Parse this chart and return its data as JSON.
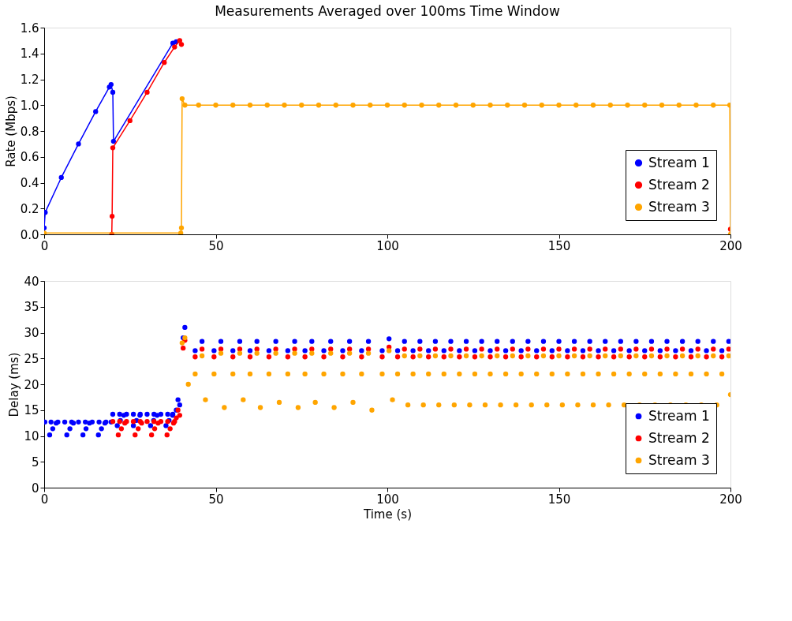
{
  "chart_data": [
    {
      "type": "line",
      "title": "Measurements Averaged over 100ms Time Window",
      "ylabel": "Rate (Mbps)",
      "xlim": [
        0,
        200
      ],
      "xticks": [
        0,
        50,
        100,
        150,
        200
      ],
      "ylim": [
        0,
        1.6
      ],
      "yticks": [
        {
          "value": 0,
          "label": "0.0"
        },
        {
          "value": 0.2,
          "label": "0.2"
        },
        {
          "value": 0.4,
          "label": "0.4"
        },
        {
          "value": 0.6,
          "label": "0.6"
        },
        {
          "value": 0.8,
          "label": "0.8"
        },
        {
          "value": 1.0,
          "label": "1.0"
        },
        {
          "value": 1.2,
          "label": "1.2"
        },
        {
          "value": 1.4,
          "label": "1.4"
        },
        {
          "value": 1.6,
          "label": "1.6"
        }
      ],
      "grid": false,
      "legend": "bottom right",
      "marker": "circle",
      "line_style": "solid",
      "series": [
        {
          "name": "Stream 1",
          "color": "#0000ff",
          "x": [
            0,
            0.3,
            5,
            10,
            15,
            19,
            19.5,
            20,
            20.2,
            37.5,
            38.5
          ],
          "values": [
            0.05,
            0.17,
            0.44,
            0.7,
            0.95,
            1.14,
            1.16,
            1.1,
            0.72,
            1.48,
            1.49
          ]
        },
        {
          "name": "Stream 2",
          "color": "#ff0000",
          "x": [
            19.7,
            19.8,
            20,
            25,
            30,
            35,
            38,
            39.5,
            40,
            40.3,
            199.8,
            200
          ],
          "values": [
            0,
            0.14,
            0.67,
            0.88,
            1.1,
            1.33,
            1.45,
            1.5,
            1.47,
            null,
            null,
            0.04
          ]
        },
        {
          "name": "Stream 3",
          "color": "#ffa500",
          "x": [
            0,
            39.8,
            40,
            40.2,
            41,
            45,
            50,
            55,
            60,
            65,
            70,
            75,
            80,
            85,
            90,
            95,
            100,
            105,
            110,
            115,
            120,
            125,
            130,
            135,
            140,
            145,
            150,
            155,
            160,
            165,
            170,
            175,
            180,
            185,
            190,
            195,
            199.8,
            200
          ],
          "values": [
            0.01,
            0.01,
            0.05,
            1.05,
            1.0,
            1.0,
            1.0,
            1.0,
            1.0,
            1.0,
            1.0,
            1.0,
            1.0,
            1.0,
            1.0,
            1.0,
            1.0,
            1.0,
            1.0,
            1.0,
            1.0,
            1.0,
            1.0,
            1.0,
            1.0,
            1.0,
            1.0,
            1.0,
            1.0,
            1.0,
            1.0,
            1.0,
            1.0,
            1.0,
            1.0,
            1.0,
            1.0,
            0.0
          ]
        }
      ]
    },
    {
      "type": "scatter",
      "xlabel": "Time (s)",
      "ylabel": "Delay (ms)",
      "xlim": [
        0,
        200
      ],
      "xticks": [
        0,
        50,
        100,
        150,
        200
      ],
      "ylim": [
        0,
        40
      ],
      "yticks": [
        0,
        5,
        10,
        15,
        20,
        25,
        30,
        35,
        40
      ],
      "grid": false,
      "legend": "bottom right",
      "marker": "circle",
      "series": [
        {
          "name": "Stream 1",
          "color": "#0000ff",
          "x": [
            0.2,
            2,
            4,
            6,
            8,
            10,
            12,
            14,
            16,
            18,
            19.5,
            1.6,
            2.5,
            3.5,
            6.6,
            7.5,
            8.5,
            11.3,
            12.2,
            13.2,
            15.8,
            16.7,
            17.7,
            20,
            22,
            24,
            26,
            28,
            30,
            32,
            34,
            36,
            37.5,
            21.3,
            22.2,
            23.2,
            26,
            26.9,
            27.9,
            31,
            31.9,
            32.9,
            35.5,
            36.4,
            37.4,
            38.5,
            39,
            39.5,
            40.5,
            41,
            44,
            46,
            49.5,
            51.5,
            55,
            57,
            60,
            62,
            65.5,
            67.5,
            71,
            73,
            76,
            78,
            81.5,
            83.5,
            87,
            89,
            92.5,
            94.5,
            98.5,
            100.5,
            103,
            105,
            107.5,
            109.5,
            112,
            114,
            116.5,
            118.5,
            121,
            123,
            125.5,
            127.5,
            130,
            132,
            134.5,
            136.5,
            139,
            141,
            143.5,
            145.5,
            148,
            150,
            152.5,
            154.5,
            157,
            159,
            161.5,
            163.5,
            166,
            168,
            170.5,
            172.5,
            175,
            177,
            179.5,
            181.5,
            184,
            186,
            188.5,
            190.5,
            193,
            195,
            197.5,
            199.5
          ],
          "values": [
            12.7,
            12.7,
            12.7,
            12.7,
            12.7,
            12.7,
            12.7,
            12.7,
            12.7,
            12.7,
            12.7,
            10.2,
            11.4,
            12.5,
            10.2,
            11.4,
            12.5,
            10.2,
            11.4,
            12.5,
            10.2,
            11.4,
            12.5,
            14.2,
            14.2,
            14.2,
            14.2,
            14.2,
            14.2,
            14.2,
            14.2,
            14.2,
            14.2,
            12,
            13,
            14,
            12,
            13,
            14,
            12,
            13,
            14,
            12,
            13,
            14,
            15,
            17,
            16,
            29,
            31,
            26.5,
            28.3,
            26.5,
            28.3,
            26.5,
            28.3,
            26.5,
            28.3,
            26.5,
            28.3,
            26.5,
            28.3,
            26.5,
            28.3,
            26.5,
            28.3,
            26.5,
            28.3,
            26.5,
            28.3,
            26.5,
            28.8,
            26.5,
            28.3,
            26.5,
            28.3,
            26.5,
            28.3,
            26.5,
            28.3,
            26.5,
            28.3,
            26.5,
            28.3,
            26.5,
            28.3,
            26.5,
            28.3,
            26.5,
            28.3,
            26.5,
            28.3,
            26.5,
            28.3,
            26.5,
            28.3,
            26.5,
            28.3,
            26.5,
            28.3,
            26.5,
            28.3,
            26.5,
            28.3,
            26.5,
            28.3,
            26.5,
            28.3,
            26.5,
            28.3,
            26.5,
            28.3,
            26.5,
            28.3,
            26.5,
            28.3
          ]
        },
        {
          "name": "Stream 2",
          "color": "#ff0000",
          "x": [
            20,
            22,
            24,
            26,
            28,
            30,
            32,
            34,
            36,
            38,
            21.6,
            22.5,
            23.5,
            26.5,
            27.4,
            28.4,
            31.3,
            32.2,
            33.2,
            35.8,
            36.7,
            37.7,
            38.5,
            39,
            39.5,
            40.5,
            41,
            44,
            46,
            49.5,
            51.5,
            55,
            57,
            60,
            62,
            65.5,
            67.5,
            71,
            73,
            76,
            78,
            81.5,
            83.5,
            87,
            89,
            92.5,
            94.5,
            98.5,
            100.5,
            103,
            105,
            107.5,
            109.5,
            112,
            114,
            116.5,
            118.5,
            121,
            123,
            125.5,
            127.5,
            130,
            132,
            134.5,
            136.5,
            139,
            141,
            143.5,
            145.5,
            148,
            150,
            152.5,
            154.5,
            157,
            159,
            161.5,
            163.5,
            166,
            168,
            170.5,
            172.5,
            175,
            177,
            179.5,
            181.5,
            184,
            186,
            188.5,
            190.5,
            193,
            195,
            197.5,
            199.5
          ],
          "values": [
            12.8,
            12.8,
            12.8,
            12.8,
            12.8,
            12.8,
            12.8,
            12.8,
            12.8,
            12.8,
            10.2,
            11.4,
            12.5,
            10.2,
            11.4,
            12.5,
            10.2,
            11.4,
            12.5,
            10.2,
            11.4,
            12.5,
            13.5,
            15,
            14,
            27,
            28.5,
            25.3,
            26.8,
            25.3,
            26.8,
            25.3,
            26.8,
            25.3,
            26.8,
            25.3,
            26.8,
            25.3,
            26.8,
            25.3,
            26.8,
            25.3,
            26.8,
            25.3,
            26.8,
            25.3,
            26.8,
            25.3,
            27.2,
            25.3,
            26.8,
            25.3,
            26.8,
            25.3,
            26.8,
            25.3,
            26.8,
            25.3,
            26.8,
            25.3,
            26.8,
            25.3,
            26.8,
            25.3,
            26.8,
            25.3,
            26.8,
            25.3,
            26.8,
            25.3,
            26.8,
            25.3,
            26.8,
            25.3,
            26.8,
            25.3,
            26.8,
            25.3,
            26.8,
            25.3,
            26.8,
            25.3,
            26.8,
            25.3,
            26.8,
            25.3,
            26.8,
            25.3,
            26.8,
            25.3,
            26.8,
            25.3,
            26.8
          ]
        },
        {
          "name": "Stream 3",
          "color": "#ffa500",
          "x": [
            40.2,
            41,
            42,
            44,
            46,
            47,
            49.5,
            51.5,
            52.5,
            55,
            57,
            58,
            60,
            62,
            63,
            65.5,
            67.5,
            68.5,
            71,
            73,
            74,
            76,
            78,
            79,
            81.5,
            83.5,
            84.5,
            87,
            89,
            90,
            92.5,
            94.5,
            95.5,
            98.5,
            100.5,
            101.5,
            103,
            105,
            106,
            107.5,
            109.5,
            110.5,
            112,
            114,
            115,
            116.5,
            118.5,
            119.5,
            121,
            123,
            124,
            125.5,
            127.5,
            128.5,
            130,
            132,
            133,
            134.5,
            136.5,
            137.5,
            139,
            141,
            142,
            143.5,
            145.5,
            146.5,
            148,
            150,
            151,
            152.5,
            154.5,
            155.5,
            157,
            159,
            160,
            161.5,
            163.5,
            164.5,
            166,
            168,
            169,
            170.5,
            172.5,
            173.5,
            175,
            177,
            178,
            179.5,
            181.5,
            182.5,
            184,
            186,
            187,
            188.5,
            190.5,
            191.5,
            193,
            195,
            196,
            197.5,
            199.5,
            200
          ],
          "values": [
            28,
            29,
            20,
            22,
            25.5,
            17,
            22,
            26,
            15.5,
            22,
            26,
            17,
            22,
            26,
            15.5,
            22,
            26,
            16.5,
            22,
            26,
            15.5,
            22,
            26,
            16.5,
            22,
            26,
            15.5,
            22,
            26,
            16.5,
            22,
            26,
            15,
            22,
            26.5,
            17,
            22,
            25.5,
            16,
            22,
            25.5,
            16,
            22,
            25.5,
            16,
            22,
            25.5,
            16,
            22,
            25.5,
            16,
            22,
            25.5,
            16,
            22,
            25.5,
            16,
            22,
            25.5,
            16,
            22,
            25.5,
            16,
            22,
            25.5,
            16,
            22,
            25.5,
            16,
            22,
            25.5,
            16,
            22,
            25.5,
            16,
            22,
            25.5,
            16,
            22,
            25.5,
            16,
            22,
            25.5,
            16,
            22,
            25.5,
            16,
            22,
            25.5,
            16,
            22,
            25.5,
            16,
            22,
            25.5,
            16,
            22,
            25.5,
            16,
            22,
            25.5,
            18
          ]
        }
      ]
    }
  ]
}
